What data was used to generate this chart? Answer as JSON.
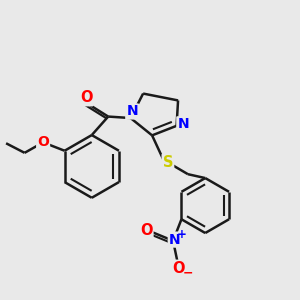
{
  "background_color": "#e9e9e9",
  "atom_colors": {
    "C": "#1a1a1a",
    "N": "#0000ff",
    "O": "#ff0000",
    "S": "#cccc00"
  },
  "line_color": "#1a1a1a",
  "line_width": 1.8,
  "figsize": [
    3.0,
    3.0
  ],
  "dpi": 100
}
